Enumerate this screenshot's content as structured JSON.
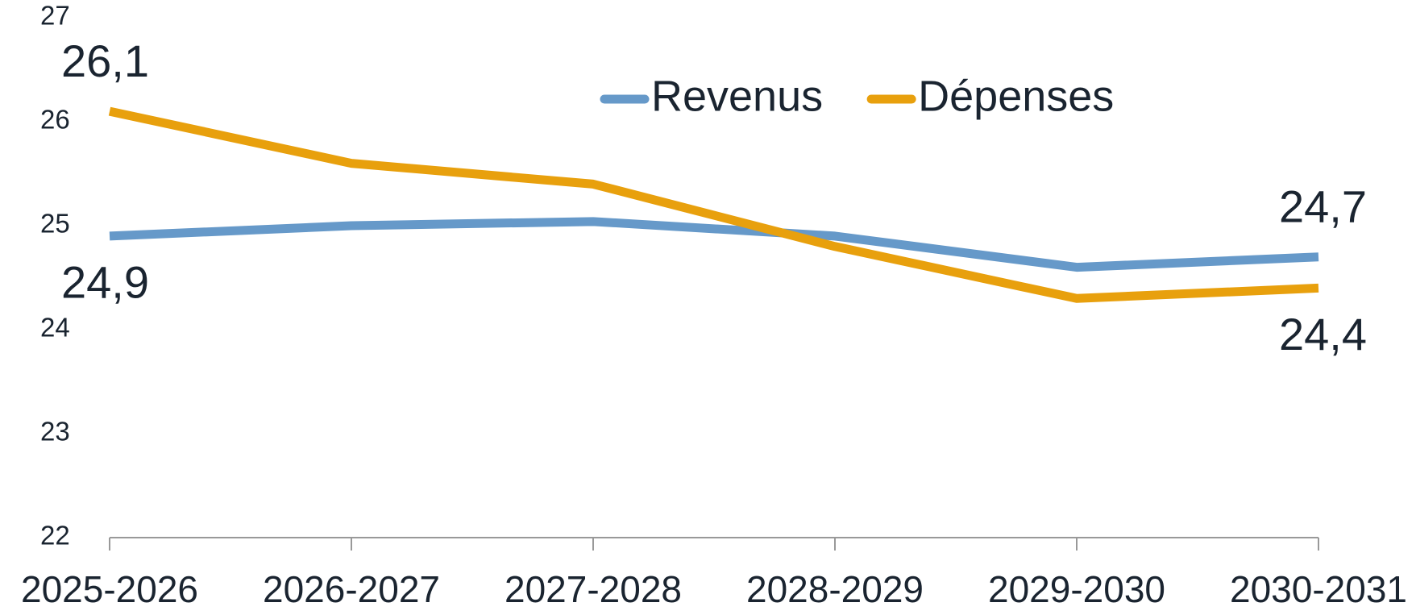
{
  "chart_data": {
    "type": "line",
    "categories": [
      "2025-2026",
      "2026-2027",
      "2027-2028",
      "2028-2029",
      "2029-2030",
      "2030-2031"
    ],
    "series": [
      {
        "name": "Revenus",
        "color": "#6699c9",
        "values": [
          24.9,
          25.0,
          25.04,
          24.9,
          24.6,
          24.7
        ],
        "value_labels": [
          "24,9",
          null,
          null,
          null,
          null,
          "24,7"
        ]
      },
      {
        "name": "Dépenses",
        "color": "#e8a00d",
        "values": [
          26.1,
          25.6,
          25.4,
          24.8,
          24.3,
          24.4
        ],
        "value_labels": [
          "26,1",
          null,
          null,
          null,
          null,
          "24,4"
        ]
      }
    ],
    "ylim": [
      22,
      27
    ],
    "yticks": [
      22,
      23,
      24,
      25,
      26,
      27
    ],
    "legend": "top"
  }
}
